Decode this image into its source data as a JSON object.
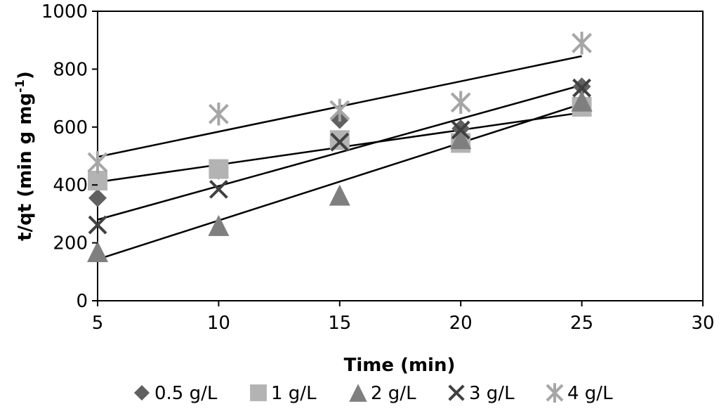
{
  "chart_data": {
    "type": "scatter",
    "title": "",
    "xlabel": "Time (min)",
    "ylabel_main": "t/qt (min g mg",
    "ylabel_sup": "-1",
    "ylabel_close": ")",
    "xlim": [
      5,
      30
    ],
    "ylim": [
      0,
      1000
    ],
    "x_ticks": [
      5,
      10,
      15,
      20,
      25,
      30
    ],
    "y_ticks": [
      0,
      200,
      400,
      600,
      800,
      1000
    ],
    "grid": false,
    "legend_position": "bottom",
    "series": [
      {
        "name": "0.5 g/L",
        "marker": "diamond",
        "color": "#606060",
        "x": [
          5,
          10,
          15,
          20,
          25
        ],
        "y": [
          355,
          450,
          625,
          595,
          740
        ],
        "fit": [
          [
            5,
            410
          ],
          [
            25,
            650
          ]
        ]
      },
      {
        "name": "1 g/L",
        "marker": "square",
        "color": "#b3b3b3",
        "x": [
          5,
          10,
          15,
          20,
          25
        ],
        "y": [
          415,
          455,
          555,
          545,
          670
        ],
        "fit": [
          [
            5,
            280
          ],
          [
            25,
            745
          ]
        ]
      },
      {
        "name": "2 g/L",
        "marker": "triangle",
        "color": "#7f7f7f",
        "x": [
          5,
          10,
          15,
          20,
          25
        ],
        "y": [
          170,
          260,
          365,
          560,
          690
        ],
        "fit": [
          [
            5,
            143
          ],
          [
            25,
            680
          ]
        ]
      },
      {
        "name": "3 g/L",
        "marker": "x",
        "color": "#404040",
        "x": [
          5,
          10,
          15,
          20,
          25
        ],
        "y": [
          262,
          385,
          548,
          590,
          735
        ],
        "fit": null
      },
      {
        "name": "4 g/L",
        "marker": "star",
        "color": "#a6a6a6",
        "x": [
          5,
          10,
          15,
          20,
          25
        ],
        "y": [
          478,
          645,
          658,
          685,
          890
        ],
        "fit": [
          [
            5,
            497
          ],
          [
            25,
            845
          ]
        ]
      }
    ]
  }
}
